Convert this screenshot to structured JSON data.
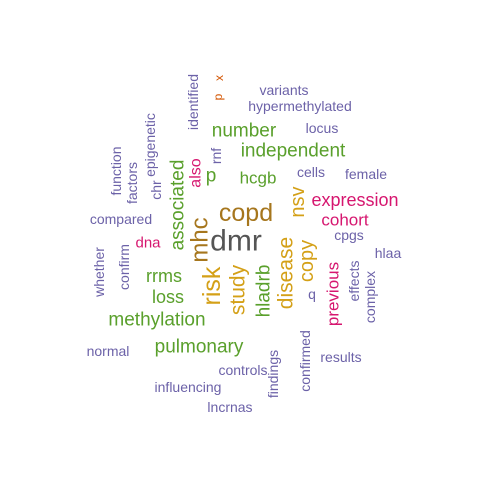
{
  "word_cloud": {
    "colors": {
      "gray": "#555555",
      "gold": "#d4a017",
      "brown": "#a6761d",
      "green": "#5aa02c",
      "pink": "#d6166f",
      "purple": "#6c62a8",
      "orange": "#d35400"
    },
    "words": [
      {
        "text": "dmr",
        "color": "gray"
      },
      {
        "text": "copd",
        "color": "brown"
      },
      {
        "text": "mhc",
        "color": "brown"
      },
      {
        "text": "risk",
        "color": "gold"
      },
      {
        "text": "study",
        "color": "gold"
      },
      {
        "text": "disease",
        "color": "gold"
      },
      {
        "text": "copy",
        "color": "gold"
      },
      {
        "text": "nsv",
        "color": "gold"
      },
      {
        "text": "associated",
        "color": "green"
      },
      {
        "text": "independent",
        "color": "green"
      },
      {
        "text": "number",
        "color": "green"
      },
      {
        "text": "methylation",
        "color": "green"
      },
      {
        "text": "pulmonary",
        "color": "green"
      },
      {
        "text": "hcgb",
        "color": "green"
      },
      {
        "text": "rrms",
        "color": "green"
      },
      {
        "text": "loss",
        "color": "green"
      },
      {
        "text": "hladrb",
        "color": "green"
      },
      {
        "text": "p",
        "color": "green"
      },
      {
        "text": "expression",
        "color": "pink"
      },
      {
        "text": "cohort",
        "color": "pink"
      },
      {
        "text": "previous",
        "color": "pink"
      },
      {
        "text": "also",
        "color": "pink"
      },
      {
        "text": "dna",
        "color": "pink"
      },
      {
        "text": "variants",
        "color": "purple"
      },
      {
        "text": "hypermethylated",
        "color": "purple"
      },
      {
        "text": "locus",
        "color": "purple"
      },
      {
        "text": "identified",
        "color": "purple"
      },
      {
        "text": "epigenetic",
        "color": "purple"
      },
      {
        "text": "function",
        "color": "purple"
      },
      {
        "text": "factors",
        "color": "purple"
      },
      {
        "text": "chr",
        "color": "purple"
      },
      {
        "text": "rnf",
        "color": "purple"
      },
      {
        "text": "cells",
        "color": "purple"
      },
      {
        "text": "female",
        "color": "purple"
      },
      {
        "text": "compared",
        "color": "purple"
      },
      {
        "text": "cpgs",
        "color": "purple"
      },
      {
        "text": "hlaa",
        "color": "purple"
      },
      {
        "text": "whether",
        "color": "purple"
      },
      {
        "text": "confirm",
        "color": "purple"
      },
      {
        "text": "q",
        "color": "purple"
      },
      {
        "text": "effects",
        "color": "purple"
      },
      {
        "text": "complex",
        "color": "purple"
      },
      {
        "text": "normal",
        "color": "purple"
      },
      {
        "text": "confirmed",
        "color": "purple"
      },
      {
        "text": "results",
        "color": "purple"
      },
      {
        "text": "controls",
        "color": "purple"
      },
      {
        "text": "findings",
        "color": "purple"
      },
      {
        "text": "influencing",
        "color": "purple"
      },
      {
        "text": "lncrnas",
        "color": "purple"
      },
      {
        "text": "p",
        "color": "orange"
      },
      {
        "text": "x",
        "color": "orange"
      }
    ]
  }
}
